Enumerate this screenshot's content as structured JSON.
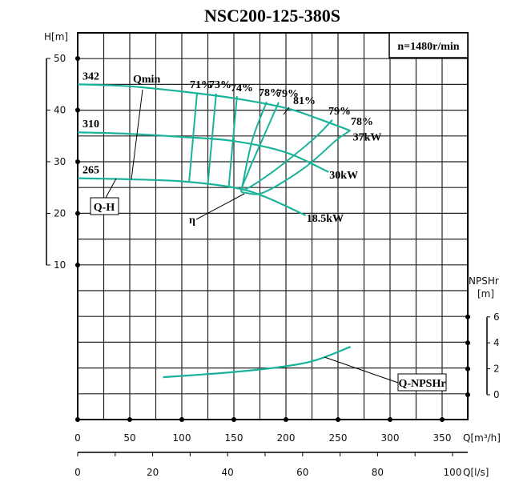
{
  "chart_data": {
    "type": "line",
    "title": "NSC200-125-380S",
    "speed_label": "n=1480r/min",
    "x_axis": {
      "label": "Q[m³/h]",
      "range": [
        0,
        375
      ],
      "ticks": [
        0,
        50,
        100,
        150,
        200,
        250,
        300,
        350
      ]
    },
    "x2_axis": {
      "label": "Q[l/s]",
      "range": [
        0,
        104
      ],
      "ticks": [
        0,
        20,
        40,
        60,
        80,
        100
      ]
    },
    "y_axis": {
      "label": "H[m]",
      "range": [
        -3,
        55
      ],
      "ticks": [
        10,
        20,
        30,
        40,
        50
      ]
    },
    "y2_axis": {
      "label_line1": "NPSHr",
      "label_line2": "[m]",
      "ticks": [
        0,
        2,
        4,
        6
      ]
    },
    "grid": true,
    "curve_color": "#1ab39a",
    "head_curves": [
      {
        "impeller": "342",
        "power": "37kW",
        "points": [
          [
            0,
            45
          ],
          [
            50,
            44.6
          ],
          [
            100,
            43.6
          ],
          [
            150,
            42.3
          ],
          [
            200,
            40.4
          ],
          [
            230,
            38.4
          ],
          [
            262,
            36
          ]
        ]
      },
      {
        "impeller": "310",
        "power": "30kW",
        "points": [
          [
            0,
            35.7
          ],
          [
            50,
            35.4
          ],
          [
            100,
            34.8
          ],
          [
            150,
            34
          ],
          [
            200,
            31.8
          ],
          [
            241,
            28
          ]
        ]
      },
      {
        "impeller": "265",
        "power": "18.5kW",
        "points": [
          [
            0,
            26.8
          ],
          [
            50,
            26.6
          ],
          [
            100,
            26.2
          ],
          [
            150,
            25
          ],
          [
            180,
            23.2
          ],
          [
            219,
            19.6
          ]
        ]
      }
    ],
    "efficiency_lines": [
      {
        "label": "71%",
        "points": [
          [
            114.6,
            43.2
          ],
          [
            107,
            26.1
          ]
        ]
      },
      {
        "label": "73%",
        "points": [
          [
            133,
            43.2
          ],
          [
            125,
            25.7
          ]
        ]
      },
      {
        "label": "74%",
        "points": [
          [
            153,
            42.7
          ],
          [
            145,
            25
          ]
        ]
      },
      {
        "label": "78%",
        "points": [
          [
            181.5,
            41.6
          ],
          [
            167.7,
            34.2
          ],
          [
            158.5,
            25.7
          ],
          [
            157,
            24.4
          ],
          [
            160.8,
            24
          ],
          [
            179.2,
            24.1
          ],
          [
            217.7,
            28.8
          ],
          [
            248.5,
            34.2
          ],
          [
            261.5,
            36
          ]
        ]
      },
      {
        "label": "79%",
        "points": [
          [
            193,
            41.5
          ],
          [
            175.4,
            33.4
          ],
          [
            163.8,
            28
          ],
          [
            159.2,
            24.6
          ],
          [
            186.9,
            28
          ],
          [
            225.4,
            34.2
          ],
          [
            244.6,
            38.1
          ]
        ]
      },
      {
        "label": "81%",
        "points": []
      }
    ],
    "efficiency_right_labels": [
      "79%",
      "78%"
    ],
    "npshr_curve": {
      "points": [
        [
          82,
          1.35
        ],
        [
          100,
          1.45
        ],
        [
          150,
          1.75
        ],
        [
          200,
          2.2
        ],
        [
          230,
          2.7
        ],
        [
          262,
          3.7
        ]
      ]
    },
    "annotations": {
      "qmin": "Qmin",
      "qh": "Q-H",
      "eta": "η",
      "qnpshr": "Q-NPSHr"
    }
  }
}
